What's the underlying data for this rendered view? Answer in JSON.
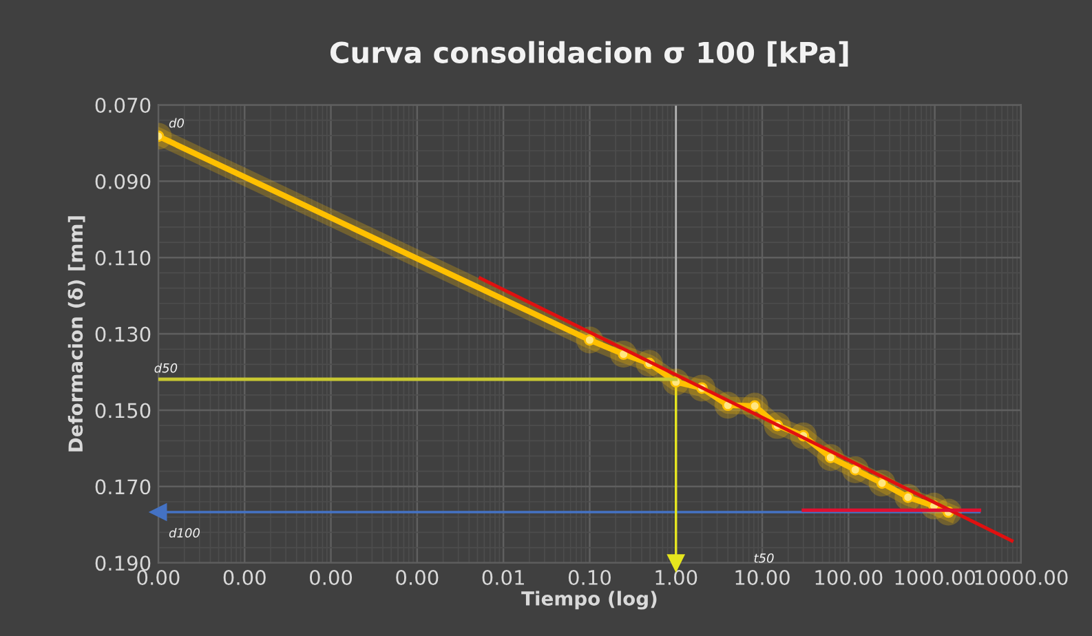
{
  "chart_data": {
    "type": "line",
    "title": "Curva consolidacion σ 100 [kPa]",
    "xlabel": "Tiempo (log)",
    "ylabel": "Deformacion (δ) [mm]",
    "log": "x",
    "grid": true,
    "marker": "none",
    "line_style": "solid",
    "xlim": [
      1e-06,
      10000
    ],
    "ylim": [
      0.19,
      0.07
    ],
    "xticks": [
      {
        "value": 1e-06,
        "label": "0.00"
      },
      {
        "value": 1e-05,
        "label": "0.00"
      },
      {
        "value": 0.0001,
        "label": "0.00"
      },
      {
        "value": 0.001,
        "label": "0.00"
      },
      {
        "value": 0.01,
        "label": "0.01"
      },
      {
        "value": 0.1,
        "label": "0.10"
      },
      {
        "value": 1,
        "label": "1.00"
      },
      {
        "value": 10,
        "label": "10.00"
      },
      {
        "value": 100,
        "label": "100.00"
      },
      {
        "value": 1000,
        "label": "1000.00"
      },
      {
        "value": 10000,
        "label": "10000.00"
      }
    ],
    "yticks": [
      {
        "value": 0.07,
        "label": "0.070"
      },
      {
        "value": 0.09,
        "label": "0.090"
      },
      {
        "value": 0.11,
        "label": "0.110"
      },
      {
        "value": 0.13,
        "label": "0.130"
      },
      {
        "value": 0.15,
        "label": "0.150"
      },
      {
        "value": 0.17,
        "label": "0.170"
      },
      {
        "value": 0.19,
        "label": "0.190"
      }
    ],
    "series": [
      {
        "color": "#ffc000",
        "marker": "circle",
        "x": [
          1e-06,
          0.1,
          0.247,
          0.49,
          1.0,
          2.0,
          4.0,
          8.2,
          15,
          30,
          62,
          120,
          245,
          490,
          980,
          1440
        ],
        "values": [
          0.0782,
          0.1316,
          0.1353,
          0.1377,
          0.1426,
          0.1442,
          0.1487,
          0.1489,
          0.154,
          0.1567,
          0.1624,
          0.1656,
          0.1691,
          0.1728,
          0.1751,
          0.1767
        ]
      },
      {
        "color": "#e01010",
        "x": [
          0.0054,
          7820
        ],
        "values": [
          0.1154,
          0.1842
        ]
      },
      {
        "color": "#e01030",
        "x": [
          30,
          3300
        ],
        "values": [
          0.1762,
          0.1762
        ]
      },
      {
        "color": "#4472c4",
        "x": [
          3300,
          1e-06
        ],
        "values": [
          0.1767,
          0.1767
        ],
        "marker": "triangle"
      },
      {
        "color": "#c8c832",
        "x": [
          1e-06,
          1.0
        ],
        "values": [
          0.1419,
          0.1419
        ]
      },
      {
        "color": "#e6e61e",
        "x": [
          1.0,
          1.0
        ],
        "values": [
          0.1419,
          0.19
        ],
        "marker": "triangle"
      }
    ],
    "ref_lines": [
      {
        "axis": "x",
        "value": 1,
        "color": "#b4b4b4"
      }
    ],
    "annotations": [
      "d0",
      "d50",
      "d100",
      "t50"
    ]
  }
}
